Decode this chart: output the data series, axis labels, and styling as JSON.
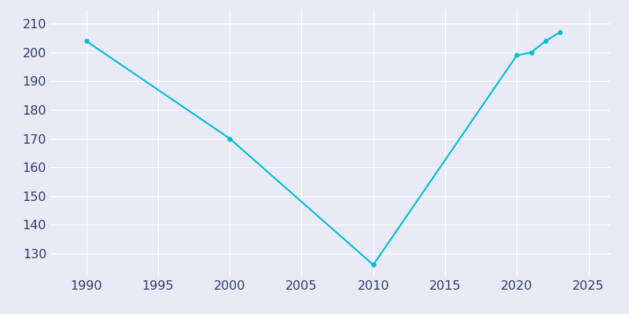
{
  "years": [
    1990,
    2000,
    2010,
    2020,
    2021,
    2022,
    2023
  ],
  "population": [
    204,
    170,
    126,
    199,
    200,
    204,
    207
  ],
  "line_color": "#00BCD4",
  "marker_style": "o",
  "marker_size": 3.5,
  "line_width": 1.5,
  "bg_color": "#E8EBF5",
  "plot_bg_color": "#E8EBF5",
  "grid_color": "#ffffff",
  "xlim": [
    1987.5,
    2026.5
  ],
  "ylim": [
    122,
    215
  ],
  "xticks": [
    1990,
    1995,
    2000,
    2005,
    2010,
    2015,
    2020,
    2025
  ],
  "yticks": [
    130,
    140,
    150,
    160,
    170,
    180,
    190,
    200,
    210
  ],
  "tick_color": "#2d3a6b",
  "tick_fontsize": 11.5
}
